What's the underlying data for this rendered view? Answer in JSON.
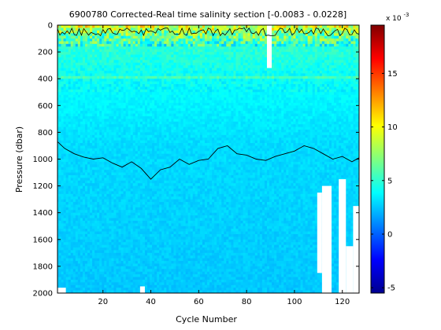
{
  "chart_data": {
    "type": "heatmap",
    "title": "6900780  Corrected-Real time salinity section [-0.0083 - 0.0228]",
    "xlabel": "Cycle Number",
    "ylabel": "Pressure (dbar)",
    "xlim": [
      1,
      127
    ],
    "ylim": [
      0,
      2000
    ],
    "y_reversed": true,
    "x_ticks": [
      20,
      40,
      60,
      80,
      100,
      120
    ],
    "x_tick_labels": [
      "20",
      "40",
      "60",
      "80",
      "100",
      "120"
    ],
    "y_ticks": [
      0,
      200,
      400,
      600,
      800,
      1000,
      1200,
      1400,
      1600,
      1800,
      2000
    ],
    "y_tick_labels": [
      "0",
      "200",
      "400",
      "600",
      "800",
      "1000",
      "1200",
      "1400",
      "1600",
      "1800",
      "2000"
    ],
    "colorbar": {
      "exponent_label": "x 10",
      "exponent_power": "-3",
      "range": [
        -5.5,
        19.5
      ],
      "ticks": [
        -5,
        0,
        5,
        10,
        15
      ],
      "tick_labels": [
        "-5",
        "0",
        "5",
        "10",
        "15"
      ],
      "colormap": "jet"
    },
    "background_value_deep": 2.5,
    "background_value_mid": 4.0,
    "surface_values": [
      {
        "pressure": 0,
        "value": 10
      },
      {
        "pressure": 60,
        "value": 7
      },
      {
        "pressure": 150,
        "value": 5
      },
      {
        "pressure": 400,
        "value": 4
      },
      {
        "pressure": 900,
        "value": 3
      },
      {
        "pressure": 2000,
        "value": 2.5
      }
    ],
    "contour_1000": {
      "cycles": [
        1,
        4,
        8,
        12,
        16,
        20,
        24,
        28,
        32,
        36,
        40,
        44,
        48,
        52,
        56,
        60,
        64,
        68,
        72,
        76,
        80,
        84,
        88,
        92,
        96,
        100,
        104,
        108,
        112,
        116,
        120,
        124,
        127
      ],
      "pressures": [
        870,
        920,
        960,
        985,
        1000,
        990,
        1030,
        1060,
        1020,
        1070,
        1150,
        1080,
        1060,
        1000,
        1040,
        1010,
        1000,
        920,
        900,
        960,
        970,
        1000,
        1010,
        980,
        960,
        940,
        900,
        920,
        960,
        1000,
        980,
        1020,
        990
      ]
    },
    "data_gaps": [
      {
        "cycle_start": 89,
        "cycle_end": 90,
        "p_start": 0,
        "p_end": 320
      },
      {
        "cycle_start": 110,
        "cycle_end": 111,
        "p_start": 1250,
        "p_end": 1850
      },
      {
        "cycle_start": 112,
        "cycle_end": 115,
        "p_start": 1200,
        "p_end": 2000
      },
      {
        "cycle_start": 119,
        "cycle_end": 121,
        "p_start": 1150,
        "p_end": 2000
      },
      {
        "cycle_start": 122,
        "cycle_end": 124,
        "p_start": 1650,
        "p_end": 2000
      },
      {
        "cycle_start": 125,
        "cycle_end": 127,
        "p_start": 1350,
        "p_end": 2000
      },
      {
        "cycle_start": 36,
        "cycle_end": 37,
        "p_start": 1950,
        "p_end": 2000
      },
      {
        "cycle_start": 1,
        "cycle_end": 4,
        "p_start": 1960,
        "p_end": 2000
      }
    ]
  }
}
